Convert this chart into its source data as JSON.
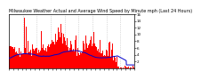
{
  "title": "Milwaukee Weather Actual and Average Wind Speed by Minute mph (Last 24 Hours)",
  "title_fontsize": 3.5,
  "bg_color": "#ffffff",
  "plot_bg_color": "#ffffff",
  "bar_color": "#ff0000",
  "line_color": "#0000cc",
  "n_points": 1440,
  "ylim": [
    0,
    16
  ],
  "yticks": [
    2,
    4,
    6,
    8,
    10,
    12,
    14,
    16
  ],
  "ylabel_fontsize": 3.0,
  "xlabel_fontsize": 2.5,
  "grid_color": "#bbbbbb",
  "n_gridlines": 9,
  "seed": 42
}
